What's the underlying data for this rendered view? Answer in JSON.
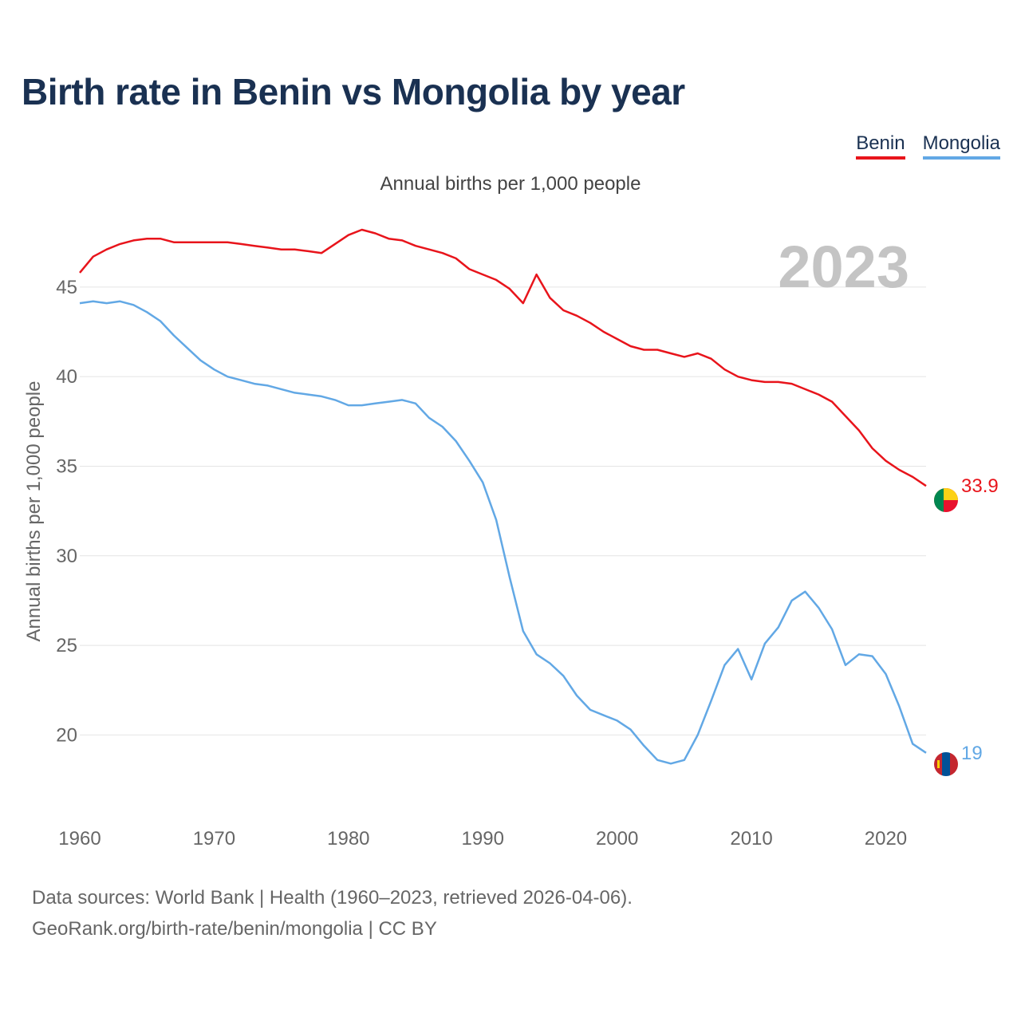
{
  "title": "Birth rate in Benin vs Mongolia by year",
  "subtitle": "Annual births per 1,000 people",
  "year_label": "2023",
  "legend": [
    {
      "name": "Benin",
      "color": "#e8141b"
    },
    {
      "name": "Mongolia",
      "color": "#62a8e5"
    }
  ],
  "footer": {
    "line1": "Data sources: World Bank | Health (1960–2023, retrieved 2026-04-06).",
    "line2": "GeoRank.org/birth-rate/benin/mongolia | CC BY"
  },
  "chart_data": {
    "type": "line",
    "title": "Birth rate in Benin vs Mongolia by year",
    "xlabel": "",
    "ylabel": "Annual births per 1,000 people",
    "xlim": [
      1960,
      2023
    ],
    "ylim": [
      16.5,
      49
    ],
    "yticks": [
      20,
      25,
      30,
      35,
      40,
      45
    ],
    "xticks": [
      1960,
      1970,
      1980,
      1990,
      2000,
      2010,
      2020
    ],
    "grid": true,
    "x": [
      1960,
      1961,
      1962,
      1963,
      1964,
      1965,
      1966,
      1967,
      1968,
      1969,
      1970,
      1971,
      1972,
      1973,
      1974,
      1975,
      1976,
      1977,
      1978,
      1979,
      1980,
      1981,
      1982,
      1983,
      1984,
      1985,
      1986,
      1987,
      1988,
      1989,
      1990,
      1991,
      1992,
      1993,
      1994,
      1995,
      1996,
      1997,
      1998,
      1999,
      2000,
      2001,
      2002,
      2003,
      2004,
      2005,
      2006,
      2007,
      2008,
      2009,
      2010,
      2011,
      2012,
      2013,
      2014,
      2015,
      2016,
      2017,
      2018,
      2019,
      2020,
      2021,
      2022,
      2023
    ],
    "series": [
      {
        "name": "Benin",
        "color": "#e8141b",
        "end_label": "33.9",
        "values": [
          45.8,
          46.7,
          47.1,
          47.4,
          47.6,
          47.7,
          47.7,
          47.5,
          47.5,
          47.5,
          47.5,
          47.5,
          47.4,
          47.3,
          47.2,
          47.1,
          47.1,
          47.0,
          46.9,
          47.4,
          47.9,
          48.2,
          48.0,
          47.7,
          47.6,
          47.3,
          47.1,
          46.9,
          46.6,
          46.0,
          45.7,
          45.4,
          44.9,
          44.1,
          45.7,
          44.4,
          43.7,
          43.4,
          43.0,
          42.5,
          42.1,
          41.7,
          41.5,
          41.5,
          41.3,
          41.1,
          41.3,
          41.0,
          40.4,
          40.0,
          39.8,
          39.7,
          39.7,
          39.6,
          39.3,
          39.0,
          38.6,
          37.8,
          37.0,
          36.0,
          35.3,
          34.8,
          34.4,
          33.9
        ]
      },
      {
        "name": "Mongolia",
        "color": "#62a8e5",
        "end_label": "19",
        "values": [
          44.1,
          44.2,
          44.1,
          44.2,
          44.0,
          43.6,
          43.1,
          42.3,
          41.6,
          40.9,
          40.4,
          40.0,
          39.8,
          39.6,
          39.5,
          39.3,
          39.1,
          39.0,
          38.9,
          38.7,
          38.4,
          38.4,
          38.5,
          38.6,
          38.7,
          38.5,
          37.7,
          37.2,
          36.4,
          35.3,
          34.1,
          32.0,
          28.8,
          25.8,
          24.5,
          24.0,
          23.3,
          22.2,
          21.4,
          21.1,
          20.8,
          20.3,
          19.4,
          18.6,
          18.4,
          18.6,
          20.0,
          21.9,
          23.9,
          24.8,
          23.1,
          25.1,
          26.0,
          27.5,
          28.0,
          27.1,
          25.9,
          23.9,
          24.5,
          24.4,
          23.4,
          21.6,
          19.5,
          19.0
        ]
      }
    ]
  }
}
